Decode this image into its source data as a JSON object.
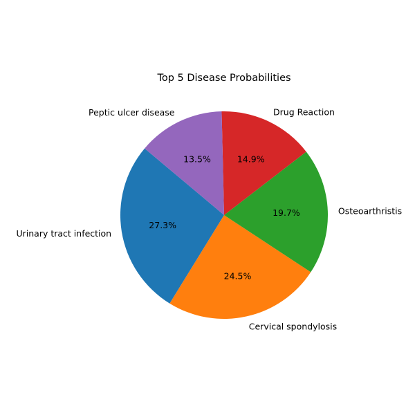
{
  "chart_data": {
    "type": "pie",
    "title": "Top 5 Disease Probabilities",
    "slices": [
      {
        "label": "Urinary tract infection",
        "value": 27.3,
        "pct_label": "27.3%",
        "color": "#1f77b4"
      },
      {
        "label": "Cervical spondylosis",
        "value": 24.5,
        "pct_label": "24.5%",
        "color": "#ff7f0e"
      },
      {
        "label": "Osteoarthristis",
        "value": 19.7,
        "pct_label": "19.7%",
        "color": "#2ca02c"
      },
      {
        "label": "Drug Reaction",
        "value": 14.9,
        "pct_label": "14.9%",
        "color": "#d62728"
      },
      {
        "label": "Peptic ulcer disease",
        "value": 13.5,
        "pct_label": "13.5%",
        "color": "#9467bd"
      }
    ],
    "start_angle_deg": 140,
    "direction": "counterclockwise",
    "legend": "none"
  }
}
